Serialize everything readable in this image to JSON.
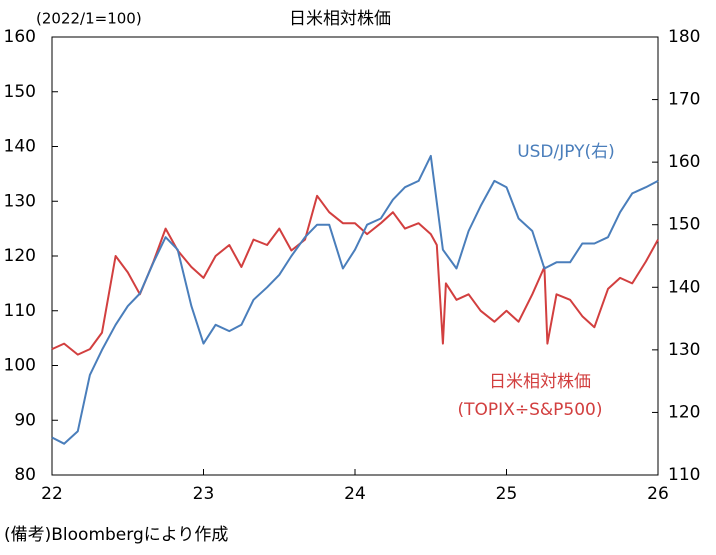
{
  "chart_data": {
    "type": "line",
    "title": "日米相対株価",
    "y_label": "(2022/1=100)",
    "note": "(備考)Bloombergにより作成",
    "xlim": [
      22,
      26
    ],
    "xticks": [
      22,
      23,
      24,
      25,
      26
    ],
    "ylim": [
      80,
      160
    ],
    "yticks": [
      80,
      90,
      100,
      110,
      120,
      130,
      140,
      150,
      160
    ],
    "y2lim": [
      110,
      180
    ],
    "y2ticks": [
      110,
      120,
      130,
      140,
      150,
      160,
      170,
      180
    ],
    "annotations": [
      "USD/JPY(右)",
      "日米相対株価",
      "(TOPIX÷S&P500)"
    ],
    "series": [
      {
        "name": "日米相対株価",
        "color": "#d23f3f",
        "axis": "y",
        "x": [
          22.0,
          22.08,
          22.17,
          22.25,
          22.33,
          22.42,
          22.5,
          22.58,
          22.67,
          22.75,
          22.83,
          22.92,
          23.0,
          23.08,
          23.17,
          23.25,
          23.33,
          23.42,
          23.5,
          23.58,
          23.67,
          23.75,
          23.83,
          23.92,
          24.0,
          24.08,
          24.17,
          24.25,
          24.33,
          24.42,
          24.5,
          24.54,
          24.58,
          24.6,
          24.67,
          24.75,
          24.83,
          24.92,
          25.0,
          25.08,
          25.17,
          25.25,
          25.27,
          25.33,
          25.42,
          25.5,
          25.58,
          25.67,
          25.75,
          25.83,
          25.92,
          26.0
        ],
        "values": [
          103,
          104,
          102,
          103,
          106,
          120,
          117,
          113,
          119,
          125,
          121,
          118,
          116,
          120,
          122,
          118,
          123,
          122,
          125,
          121,
          123,
          131,
          128,
          126,
          126,
          124,
          126,
          128,
          125,
          126,
          124,
          122,
          104,
          115,
          112,
          113,
          110,
          108,
          110,
          108,
          113,
          118,
          104,
          113,
          112,
          109,
          107,
          114,
          116,
          115,
          119,
          123
        ]
      },
      {
        "name": "USD/JPY",
        "color": "#4a7ebb",
        "axis": "y2",
        "x": [
          22.0,
          22.08,
          22.17,
          22.25,
          22.33,
          22.42,
          22.5,
          22.58,
          22.67,
          22.75,
          22.83,
          22.92,
          23.0,
          23.08,
          23.17,
          23.25,
          23.33,
          23.42,
          23.5,
          23.58,
          23.67,
          23.75,
          23.83,
          23.92,
          24.0,
          24.08,
          24.17,
          24.25,
          24.33,
          24.42,
          24.5,
          24.58,
          24.67,
          24.75,
          24.83,
          24.92,
          25.0,
          25.08,
          25.17,
          25.25,
          25.33,
          25.42,
          25.5,
          25.58,
          25.67,
          25.75,
          25.83,
          25.92,
          26.0
        ],
        "values": [
          116,
          115,
          117,
          126,
          130,
          134,
          137,
          139,
          144,
          148,
          146,
          137,
          131,
          134,
          133,
          134,
          138,
          140,
          142,
          145,
          148,
          150,
          150,
          143,
          146,
          150,
          151,
          154,
          156,
          157,
          161,
          146,
          143,
          149,
          153,
          157,
          156,
          151,
          149,
          143,
          144,
          144,
          147,
          147,
          148,
          152,
          155,
          156,
          157
        ]
      }
    ]
  }
}
